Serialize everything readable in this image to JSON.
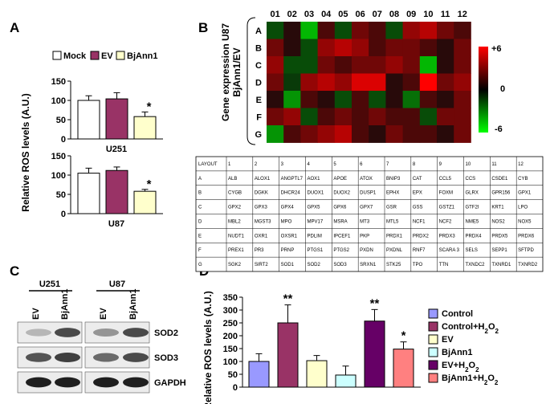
{
  "panels": {
    "A": "A",
    "B": "B",
    "C": "C",
    "D": "D"
  },
  "colors": {
    "mock": "#ffffff",
    "ev": "#993366",
    "bjann1": "#ffffcc"
  },
  "chart_data": [
    {
      "id": "A-U251",
      "type": "bar",
      "title": "U251",
      "categories": [
        "Mock",
        "EV",
        "BjAnn1"
      ],
      "values": [
        100,
        104,
        58
      ],
      "errors": [
        12,
        16,
        12
      ],
      "annotations": [
        "",
        "",
        "*"
      ],
      "ylim": [
        0,
        150
      ],
      "yticks": [
        0,
        50,
        100,
        150
      ],
      "ylabel": "Relative ROS levels (A.U.)",
      "legend": [
        "Mock",
        "EV",
        "BjAnn1"
      ]
    },
    {
      "id": "A-U87",
      "type": "bar",
      "title": "U87",
      "categories": [
        "Mock",
        "EV",
        "BjAnn1"
      ],
      "values": [
        105,
        112,
        58
      ],
      "errors": [
        13,
        9,
        5
      ],
      "annotations": [
        "",
        "",
        "*"
      ],
      "ylim": [
        0,
        150
      ],
      "yticks": [
        0,
        50,
        100,
        150
      ],
      "ylabel": "Relative ROS levels (A.U.)"
    },
    {
      "id": "B-heatmap",
      "type": "heatmap",
      "ylabel": "Gene expression U87 BjAnn1/EV",
      "columns": [
        "01",
        "02",
        "03",
        "04",
        "05",
        "06",
        "07",
        "08",
        "09",
        "10",
        "11",
        "12"
      ],
      "rows": [
        "A",
        "B",
        "C",
        "D",
        "E",
        "F",
        "G"
      ],
      "colorbar": {
        "max": "+6",
        "mid": "0",
        "min": "-6"
      },
      "values": [
        [
          -1,
          0,
          -4,
          1,
          -1,
          2,
          1,
          -1,
          3,
          4,
          2,
          1
        ],
        [
          2,
          0,
          -1,
          3,
          4,
          3,
          1,
          2,
          2,
          1,
          0,
          2
        ],
        [
          3,
          -1,
          -1,
          2,
          1,
          2,
          2,
          3,
          2,
          -4,
          0,
          2
        ],
        [
          2,
          -0.5,
          3,
          4,
          3,
          5,
          5,
          0,
          1,
          6,
          2,
          3
        ],
        [
          0,
          -3,
          1,
          0,
          -1,
          1,
          -1,
          0,
          -2,
          1,
          0,
          2
        ],
        [
          2,
          3,
          -1,
          1,
          2,
          1,
          2,
          1,
          1,
          -1,
          2,
          2
        ],
        [
          -3,
          1,
          2,
          3,
          4,
          1,
          0,
          2,
          1,
          1,
          0,
          2
        ]
      ]
    },
    {
      "id": "D-bar",
      "type": "bar",
      "categories": [
        "Control",
        "Control+H2O2",
        "EV",
        "BjAnn1",
        "EV+H2O2",
        "BjAnn1+H2O2"
      ],
      "values": [
        100,
        250,
        103,
        47,
        257,
        148
      ],
      "errors": [
        30,
        70,
        20,
        35,
        45,
        28
      ],
      "annotations": [
        "",
        "**",
        "",
        "",
        "**",
        "*"
      ],
      "colors": [
        "#9999ff",
        "#993366",
        "#ffffcc",
        "#ccffff",
        "#660066",
        "#ff8080"
      ],
      "ylim": [
        0,
        350
      ],
      "yticks": [
        0,
        50,
        100,
        150,
        200,
        250,
        300,
        350
      ],
      "ylabel": "Relative ROS levels (A.U.)"
    }
  ],
  "layout_table": {
    "header": [
      "LAYOUT",
      "1",
      "2",
      "3",
      "4",
      "5",
      "6",
      "7",
      "8",
      "9",
      "10",
      "11",
      "12"
    ],
    "rows": [
      [
        "A",
        "ALB",
        "ALOX1",
        "ANGPTL7",
        "AOX1",
        "APOE",
        "ATOX",
        "BNIP3",
        "CAT",
        "CCL5",
        "CCS",
        "CSDE1",
        "CYB"
      ],
      [
        "B",
        "CYGB",
        "DGKK",
        "DHCR24",
        "DUOX1",
        "DUOX2",
        "DUSP1",
        "EPHX",
        "EPX",
        "FOXM",
        "GLRX",
        "GPR156",
        "GPX1"
      ],
      [
        "C",
        "GPX2",
        "GPX3",
        "GPX4",
        "GPX5",
        "GPX6",
        "GPX7",
        "GSR",
        "GSS",
        "GSTZ1",
        "GTF2I",
        "KRT1",
        "LPO"
      ],
      [
        "D",
        "MBL2",
        "MGST3",
        "MPO",
        "MPV17",
        "MSRA",
        "MT3",
        "MTL5",
        "NCF1",
        "NCF2",
        "NME5",
        "NOS2",
        "NOX5"
      ],
      [
        "E",
        "NUDT1",
        "OXR1",
        "OXSR1",
        "PDLIM",
        "IPCEF1",
        "PKP",
        "PRDX1",
        "PRDX2",
        "PRDX3",
        "PRDX4",
        "PRDX5",
        "PRDX6"
      ],
      [
        "F",
        "PREX1",
        "PR3",
        "PRNP",
        "PTGS1",
        "PTGS2",
        "PXDN",
        "PXDNL",
        "RNF7",
        "SCARA 3",
        "SELS",
        "SEPP1",
        "SFTPD"
      ],
      [
        "G",
        "SGK2",
        "SIRT2",
        "SOD1",
        "SOD2",
        "SOD3",
        "SRXN1",
        "STK25",
        "TPO",
        "TTN",
        "TXNDC2",
        "TXNRD1",
        "TXNRD2"
      ]
    ]
  },
  "blots": {
    "groups": [
      "U251",
      "U87"
    ],
    "lanes": [
      "EV",
      "BjAnn1",
      "EV",
      "BjAnn1"
    ],
    "rows": [
      "SOD2",
      "SOD3",
      "GAPDH"
    ]
  }
}
